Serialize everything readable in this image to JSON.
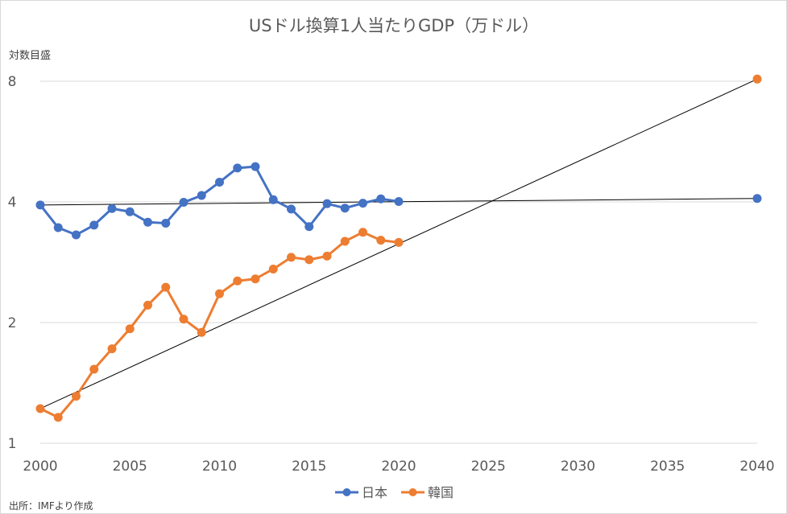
{
  "chart_data": {
    "type": "line",
    "title": "USドル換算1人当たりGDP（万ドル）",
    "ylabel": "対数目盛",
    "xlabel": "",
    "y_scale": "log2",
    "ylim": [
      1,
      8
    ],
    "yticks": [
      1,
      2,
      4,
      8
    ],
    "xlim": [
      2000,
      2040
    ],
    "xticks": [
      2000,
      2005,
      2010,
      2015,
      2020,
      2025,
      2030,
      2035,
      2040
    ],
    "grid": true,
    "legend_position": "bottom",
    "source": "出所：IMFより作成",
    "series": [
      {
        "name": "日本",
        "color": "#4472c4",
        "x": [
          2000,
          2001,
          2002,
          2003,
          2004,
          2005,
          2006,
          2007,
          2008,
          2009,
          2010,
          2011,
          2012,
          2013,
          2014,
          2015,
          2016,
          2017,
          2018,
          2019,
          2020
        ],
        "values": [
          3.93,
          3.45,
          3.31,
          3.5,
          3.85,
          3.78,
          3.56,
          3.54,
          3.99,
          4.15,
          4.48,
          4.86,
          4.9,
          4.05,
          3.84,
          3.47,
          3.96,
          3.86,
          3.97,
          4.07,
          4.01
        ]
      },
      {
        "name": "韓国",
        "color": "#ed7d31",
        "x": [
          2000,
          2001,
          2002,
          2003,
          2004,
          2005,
          2006,
          2007,
          2008,
          2009,
          2010,
          2011,
          2012,
          2013,
          2014,
          2015,
          2016,
          2017,
          2018,
          2019,
          2020
        ],
        "values": [
          1.22,
          1.16,
          1.31,
          1.53,
          1.72,
          1.93,
          2.21,
          2.45,
          2.04,
          1.89,
          2.36,
          2.54,
          2.57,
          2.72,
          2.91,
          2.87,
          2.93,
          3.19,
          3.36,
          3.21,
          3.17
        ]
      }
    ],
    "projection_points": [
      {
        "series": "日本",
        "x": 2040,
        "value": 4.08
      },
      {
        "series": "韓国",
        "x": 2040,
        "value": 8.1
      }
    ],
    "trendlines": [
      {
        "series": "日本",
        "x": [
          2000,
          2040
        ],
        "values": [
          3.93,
          4.08
        ],
        "color": "#000000"
      },
      {
        "series": "韓国",
        "x": [
          2000,
          2040
        ],
        "values": [
          1.22,
          8.1
        ],
        "color": "#000000"
      }
    ]
  }
}
